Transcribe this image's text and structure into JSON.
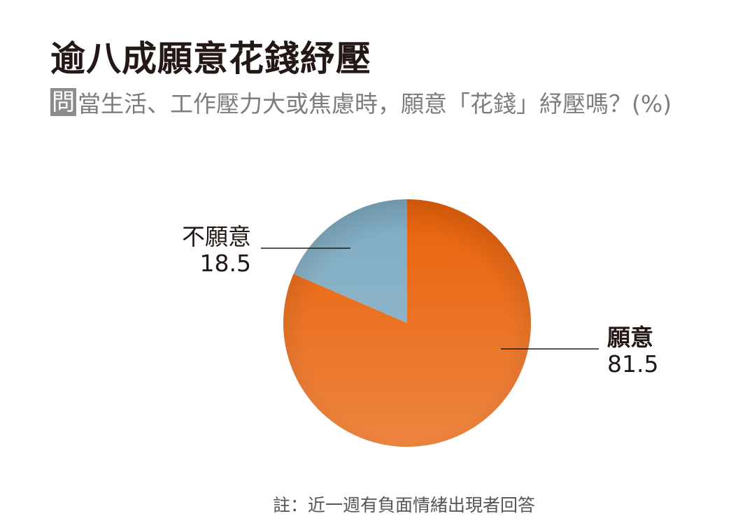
{
  "chart_data": {
    "type": "pie",
    "title": "逾八成願意花錢紓壓",
    "subtitle_tag": "問",
    "subtitle": "當生活、工作壓力大或焦慮時，願意「花錢」紓壓嗎？(%)",
    "slices": [
      {
        "label": "願意",
        "value": 81.5,
        "display": "81.5",
        "color": "#e8620a"
      },
      {
        "label": "不願意",
        "value": 18.5,
        "display": "18.5",
        "color": "#7eabc2"
      }
    ],
    "start": "top",
    "direction": "clockwise",
    "note": "註：近一週有負面情緒出現者回答"
  }
}
